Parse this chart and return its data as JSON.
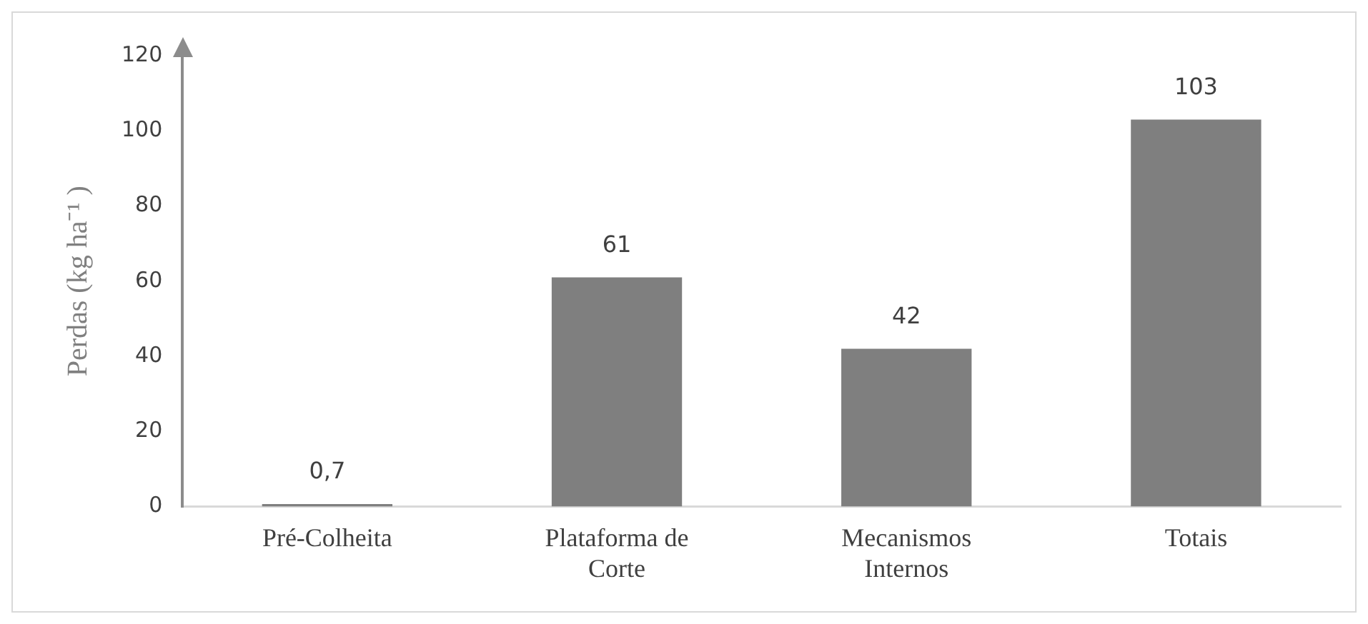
{
  "chart_data": {
    "type": "bar",
    "ylabel": "Perdas (kg ha⁻¹ )",
    "categories": [
      "Pré-Colheita",
      "Plataforma de Corte",
      "Mecanismos Internos",
      "Totais"
    ],
    "values": [
      0.7,
      61,
      42,
      103
    ],
    "value_labels": [
      "0,7",
      "61",
      "42",
      "103"
    ],
    "color": "#7f7f7f",
    "ylim": [
      0,
      120
    ],
    "yticks": [
      0,
      20,
      40,
      60,
      80,
      100,
      120
    ],
    "grid": false,
    "legend": false
  }
}
